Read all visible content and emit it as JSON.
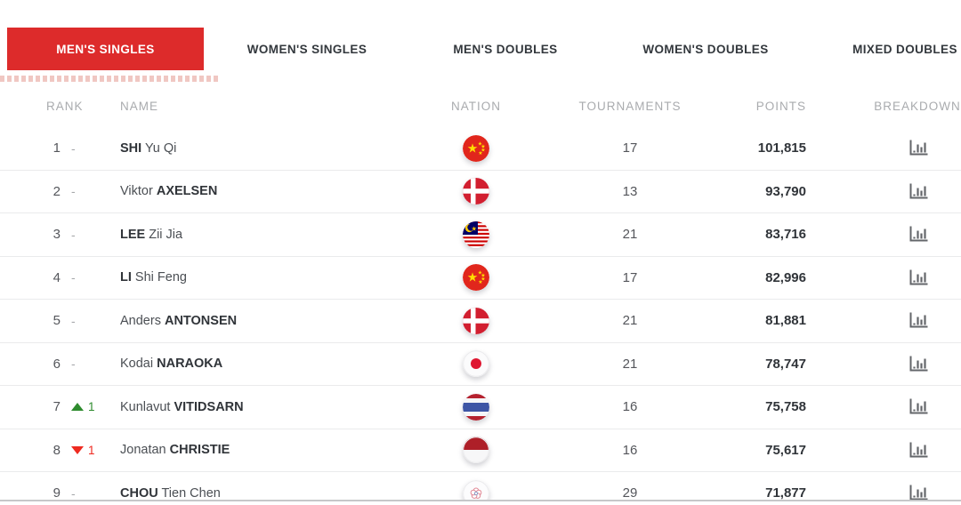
{
  "tabs": [
    {
      "label": "MEN'S SINGLES",
      "active": true
    },
    {
      "label": "WOMEN'S SINGLES",
      "active": false
    },
    {
      "label": "MEN'S DOUBLES",
      "active": false
    },
    {
      "label": "WOMEN'S DOUBLES",
      "active": false
    },
    {
      "label": "MIXED DOUBLES",
      "active": false
    }
  ],
  "table": {
    "headers": {
      "rank": "RANK",
      "name": "NAME",
      "nation": "NATION",
      "tournaments": "TOURNAMENTS",
      "points": "POINTS",
      "breakdown": "BREAKDOWN"
    },
    "rows": [
      {
        "rank": "1",
        "change": {
          "dir": "none",
          "value": "-"
        },
        "name": {
          "family": "SHI",
          "given": "Yu Qi",
          "family_first": true
        },
        "flag": "chn",
        "tournaments": "17",
        "points": "101,815"
      },
      {
        "rank": "2",
        "change": {
          "dir": "none",
          "value": "-"
        },
        "name": {
          "family": "AXELSEN",
          "given": "Viktor",
          "family_first": false
        },
        "flag": "den",
        "tournaments": "13",
        "points": "93,790"
      },
      {
        "rank": "3",
        "change": {
          "dir": "none",
          "value": "-"
        },
        "name": {
          "family": "LEE",
          "given": "Zii Jia",
          "family_first": true
        },
        "flag": "mas",
        "tournaments": "21",
        "points": "83,716"
      },
      {
        "rank": "4",
        "change": {
          "dir": "none",
          "value": "-"
        },
        "name": {
          "family": "LI",
          "given": "Shi Feng",
          "family_first": true
        },
        "flag": "chn",
        "tournaments": "17",
        "points": "82,996"
      },
      {
        "rank": "5",
        "change": {
          "dir": "none",
          "value": "-"
        },
        "name": {
          "family": "ANTONSEN",
          "given": "Anders",
          "family_first": false
        },
        "flag": "den",
        "tournaments": "21",
        "points": "81,881"
      },
      {
        "rank": "6",
        "change": {
          "dir": "none",
          "value": "-"
        },
        "name": {
          "family": "NARAOKA",
          "given": "Kodai",
          "family_first": false
        },
        "flag": "jpn",
        "tournaments": "21",
        "points": "78,747"
      },
      {
        "rank": "7",
        "change": {
          "dir": "up",
          "value": "1"
        },
        "name": {
          "family": "VITIDSARN",
          "given": "Kunlavut",
          "family_first": false
        },
        "flag": "tha",
        "tournaments": "16",
        "points": "75,758"
      },
      {
        "rank": "8",
        "change": {
          "dir": "down",
          "value": "1"
        },
        "name": {
          "family": "CHRISTIE",
          "given": "Jonatan",
          "family_first": false
        },
        "flag": "ina",
        "tournaments": "16",
        "points": "75,617"
      },
      {
        "rank": "9",
        "change": {
          "dir": "none",
          "value": "-"
        },
        "name": {
          "family": "CHOU",
          "given": "Tien Chen",
          "family_first": true
        },
        "flag": "tpe",
        "tournaments": "29",
        "points": "71,877"
      }
    ]
  },
  "icons": {
    "breakdown": "bar-chart-icon",
    "flags": [
      "flag-chn-icon",
      "flag-den-icon",
      "flag-mas-icon",
      "flag-jpn-icon",
      "flag-tha-icon",
      "flag-ina-icon",
      "flag-tpe-icon"
    ]
  },
  "colors": {
    "tab_active_bg": "#DD2B2B",
    "tab_active_text": "#FFFFFF",
    "change_up": "#2E8B2E",
    "change_down": "#EE2A20"
  }
}
